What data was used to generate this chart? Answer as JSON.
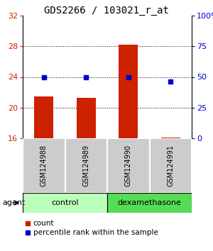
{
  "title": "GDS2266 / 103021_r_at",
  "samples": [
    "GSM124988",
    "GSM124989",
    "GSM124990",
    "GSM124991"
  ],
  "bar_values": [
    21.5,
    21.3,
    28.2,
    16.1
  ],
  "percentile_values": [
    50,
    50,
    50,
    46
  ],
  "bar_color": "#cc2200",
  "dot_color": "#0000cc",
  "ylim_left": [
    16,
    32
  ],
  "ylim_right": [
    0,
    100
  ],
  "yticks_left": [
    16,
    20,
    24,
    28,
    32
  ],
  "yticks_right": [
    0,
    25,
    50,
    75,
    100
  ],
  "ytick_labels_right": [
    "0",
    "25",
    "50",
    "75",
    "100%"
  ],
  "control_color": "#bbffbb",
  "dex_color": "#55dd55",
  "agent_label": "agent",
  "bar_width": 0.45,
  "sample_box_color": "#cccccc",
  "background_color": "#ffffff",
  "title_fontsize": 10,
  "tick_fontsize": 8,
  "legend_red_label": "count",
  "legend_blue_label": "percentile rank within the sample"
}
